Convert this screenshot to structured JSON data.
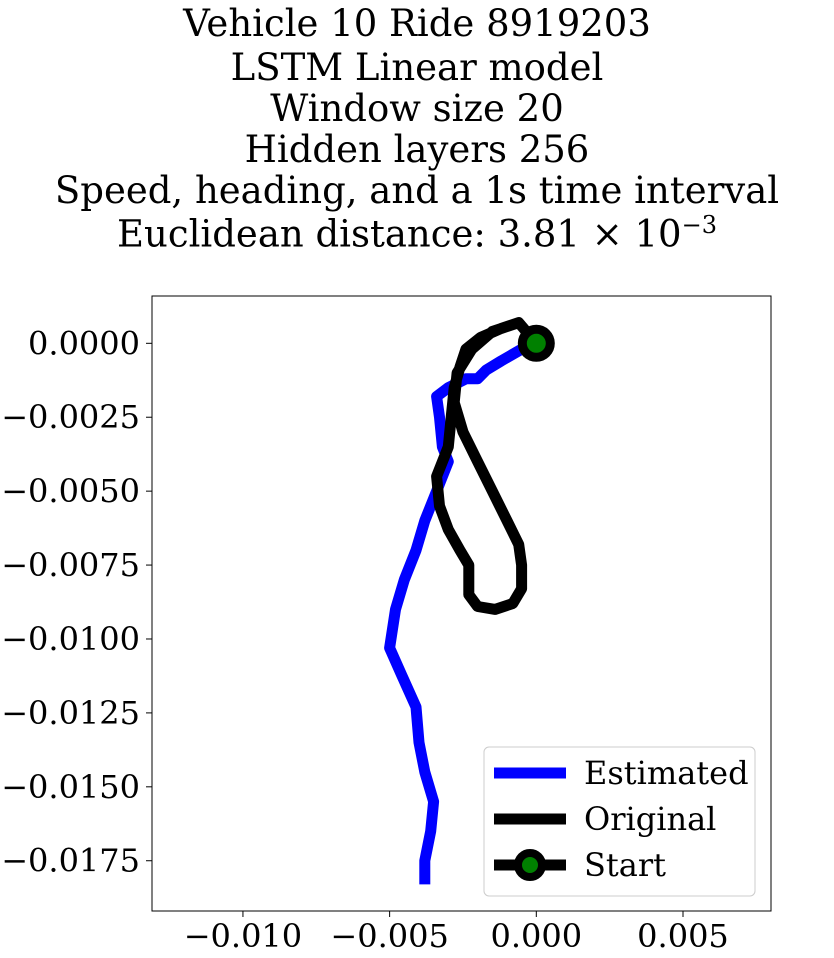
{
  "chart_data": {
    "type": "line",
    "title_lines": [
      "Vehicle 10 Ride 8919203",
      "LSTM Linear model",
      "Window size 20",
      "Hidden layers 256",
      "Speed, heading, and a 1s time interval"
    ],
    "title_metric_prefix": "Euclidean distance: 3.81 × 10",
    "title_metric_exponent": "−3",
    "xlim": [
      -0.0131,
      0.008
    ],
    "ylim": [
      -0.0192,
      0.0016
    ],
    "xticks": [
      -0.01,
      -0.005,
      0.0,
      0.005
    ],
    "xtick_labels": [
      "−0.010",
      "−0.005",
      "0.000",
      "0.005"
    ],
    "yticks": [
      0.0,
      -0.0025,
      -0.005,
      -0.0075,
      -0.01,
      -0.0125,
      -0.015,
      -0.0175
    ],
    "ytick_labels": [
      "0.0000",
      "−0.0025",
      "−0.0050",
      "−0.0075",
      "−0.0100",
      "−0.0125",
      "−0.0150",
      "−0.0175"
    ],
    "grid": false,
    "legend_position": "bottom-right",
    "series": [
      {
        "name": "Estimated",
        "color": "#0000ff",
        "points": [
          [
            0.0,
            0.0
          ],
          [
            -0.0005,
            -0.0002
          ],
          [
            -0.0012,
            -0.0006
          ],
          [
            -0.0017,
            -0.0009
          ],
          [
            -0.002,
            -0.0012
          ],
          [
            -0.0024,
            -0.0012
          ],
          [
            -0.003,
            -0.0015
          ],
          [
            -0.0034,
            -0.0018
          ],
          [
            -0.0033,
            -0.0025
          ],
          [
            -0.0032,
            -0.0035
          ],
          [
            -0.003,
            -0.004
          ],
          [
            -0.0034,
            -0.005
          ],
          [
            -0.0038,
            -0.006
          ],
          [
            -0.0041,
            -0.007
          ],
          [
            -0.0045,
            -0.008
          ],
          [
            -0.0048,
            -0.009
          ],
          [
            -0.005,
            -0.0103
          ],
          [
            -0.0046,
            -0.0112
          ],
          [
            -0.0041,
            -0.0123
          ],
          [
            -0.004,
            -0.0135
          ],
          [
            -0.0038,
            -0.0145
          ],
          [
            -0.0035,
            -0.0155
          ],
          [
            -0.0036,
            -0.0165
          ],
          [
            -0.0038,
            -0.0175
          ],
          [
            -0.0038,
            -0.0183
          ]
        ]
      },
      {
        "name": "Original",
        "color": "#000000",
        "points": [
          [
            0.0,
            0.0
          ],
          [
            -0.0006,
            0.0007
          ],
          [
            -0.0012,
            0.0005
          ],
          [
            -0.0019,
            0.0002
          ],
          [
            -0.0024,
            -0.0002
          ],
          [
            -0.0026,
            -0.0008
          ],
          [
            -0.0028,
            -0.0015
          ],
          [
            -0.0029,
            -0.0025
          ],
          [
            -0.003,
            -0.0035
          ],
          [
            -0.0034,
            -0.0045
          ],
          [
            -0.0033,
            -0.0055
          ],
          [
            -0.003,
            -0.0063
          ],
          [
            -0.0026,
            -0.007
          ],
          [
            -0.0023,
            -0.0075
          ],
          [
            -0.0023,
            -0.0085
          ],
          [
            -0.002,
            -0.0089
          ],
          [
            -0.0014,
            -0.009
          ],
          [
            -0.0008,
            -0.0088
          ],
          [
            -0.0005,
            -0.0083
          ],
          [
            -0.0005,
            -0.0075
          ],
          [
            -0.0006,
            -0.0068
          ],
          [
            -0.001,
            -0.006
          ],
          [
            -0.0015,
            -0.005
          ],
          [
            -0.002,
            -0.004
          ],
          [
            -0.0025,
            -0.003
          ],
          [
            -0.0028,
            -0.002
          ],
          [
            -0.0027,
            -0.001
          ],
          [
            -0.0022,
            -0.0002
          ],
          [
            -0.0015,
            0.0004
          ],
          [
            -0.0006,
            0.0007
          ],
          [
            0.0,
            0.0
          ]
        ]
      }
    ],
    "start": {
      "name": "Start",
      "x": 0.0,
      "y": 0.0,
      "color": "#008000"
    },
    "legend": [
      "Estimated",
      "Original",
      "Start"
    ]
  }
}
